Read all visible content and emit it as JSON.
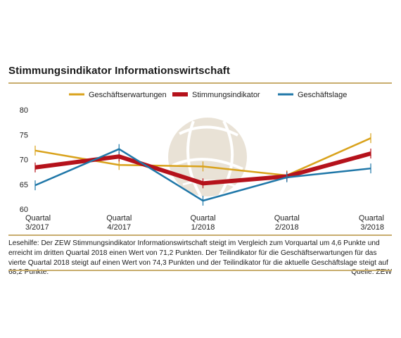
{
  "chart_data": {
    "type": "line",
    "title": "Stimmungsindikator Informationswirtschaft",
    "categories": [
      [
        "Quartal",
        "3/2017"
      ],
      [
        "Quartal",
        "4/2017"
      ],
      [
        "Quartal",
        "1/2018"
      ],
      [
        "Quartal",
        "2/2018"
      ],
      [
        "Quartal",
        "3/2018"
      ]
    ],
    "ylim": [
      60,
      80
    ],
    "yticks": [
      80,
      75,
      70,
      65,
      60
    ],
    "grid": false,
    "legend_position": "top",
    "series": [
      {
        "name": "Geschäftserwartungen",
        "color": "#d9a21b",
        "values": [
          71.8,
          68.9,
          68.6,
          66.8,
          74.3
        ]
      },
      {
        "name": "Stimmungsindikator",
        "color": "#b5121b",
        "values": [
          68.4,
          70.6,
          65.2,
          66.6,
          71.2
        ]
      },
      {
        "name": "Geschäftslage",
        "color": "#1f77a8",
        "values": [
          64.8,
          72.1,
          61.7,
          66.4,
          68.2
        ]
      }
    ]
  },
  "note": {
    "text": "Lesehilfe: Der ZEW Stimmungsindikator Informationswirtschaft steigt im Vergleich zum Vorquartal um 4,6 Punkte und erreicht im dritten Quartal 2018 einen Wert von 71,2 Punkten. Der Teilindikator für die Geschäftserwartungen für das vierte Quartal 2018 steigt auf einen Wert von 74,3 Punkten und der Teilindikator für die aktuelle Geschäftslage steigt auf 68,2 Punkte.",
    "source": "Quelle: ZEW"
  }
}
